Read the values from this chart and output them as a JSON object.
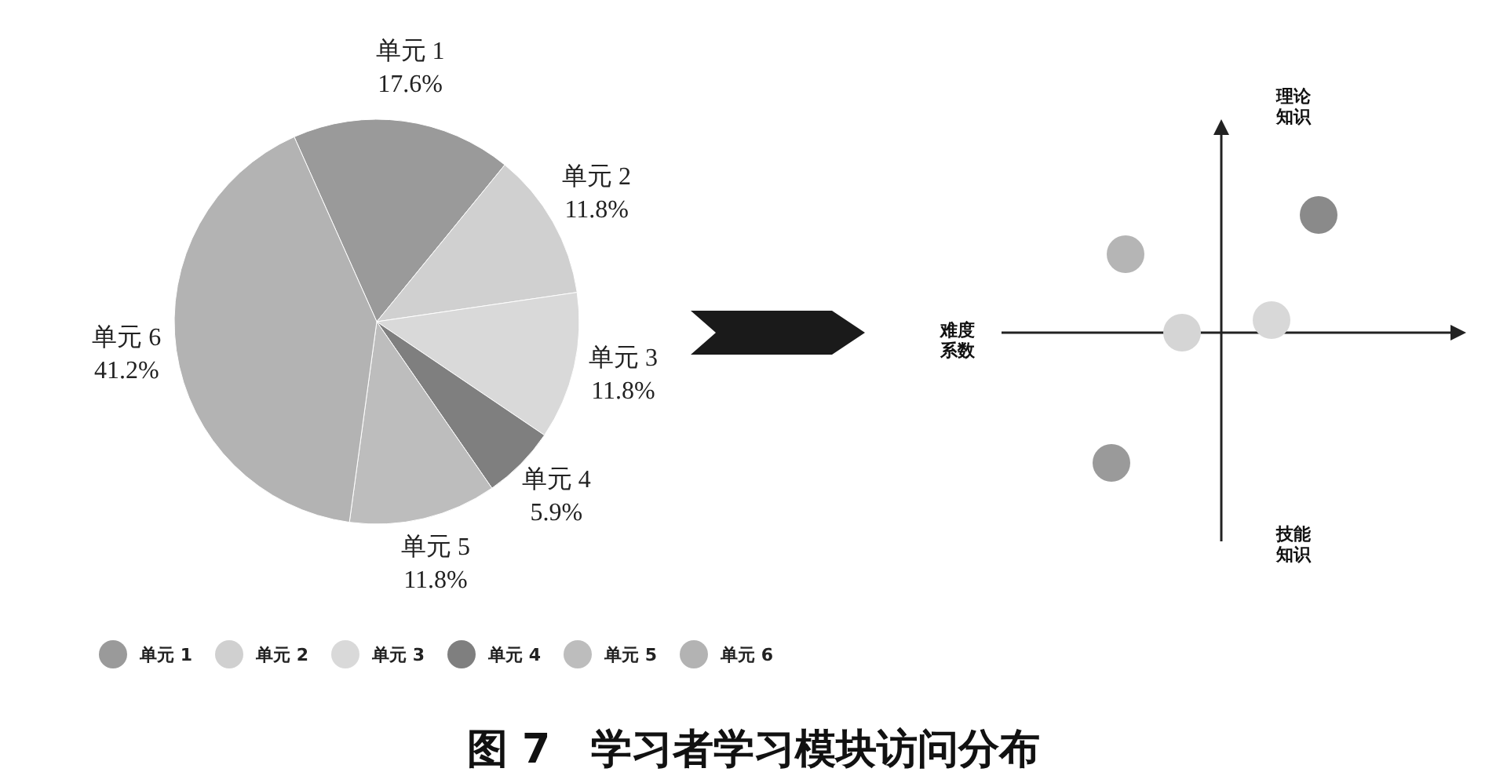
{
  "chart_data": [
    {
      "type": "pie",
      "title": "图 7　学习者学习模块访问分布",
      "categories": [
        "单元 1",
        "单元 2",
        "单元 3",
        "单元 4",
        "单元 5",
        "单元 6"
      ],
      "values": [
        17.6,
        11.8,
        11.8,
        5.9,
        11.8,
        41.2
      ],
      "value_labels": [
        "17.6%",
        "11.8%",
        "11.8%",
        "5.9%",
        "11.8%",
        "41.2%"
      ],
      "colors": [
        "#9a9a9a",
        "#d0d0d0",
        "#d9d9d9",
        "#7f7f7f",
        "#bdbdbd",
        "#b3b3b3"
      ],
      "legend": "bottom"
    },
    {
      "type": "other",
      "annotations": [
        "理论知识",
        "难度系数",
        "技能知识"
      ]
    }
  ]
}
